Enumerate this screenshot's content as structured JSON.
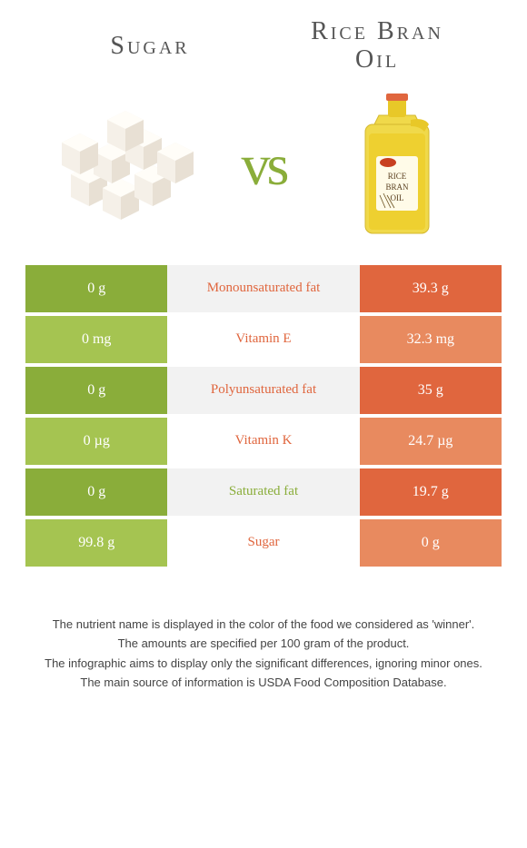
{
  "header": {
    "left_title": "Sugar",
    "right_title_line1": "Rice Bran",
    "right_title_line2": "Oil",
    "vs": "vs"
  },
  "colors": {
    "green_dark": "#8aad3a",
    "green_light": "#a5c451",
    "orange_dark": "#e0663e",
    "orange_light": "#e88a5f",
    "mid_alt": "#f2f2f2",
    "mid_base": "#ffffff",
    "text": "#333333"
  },
  "rows": [
    {
      "left": "0 g",
      "mid": "Monounsaturated fat",
      "right": "39.3 g",
      "winner": "right"
    },
    {
      "left": "0 mg",
      "mid": "Vitamin E",
      "right": "32.3 mg",
      "winner": "right"
    },
    {
      "left": "0 g",
      "mid": "Polyunsaturated fat",
      "right": "35 g",
      "winner": "right"
    },
    {
      "left": "0 µg",
      "mid": "Vitamin K",
      "right": "24.7 µg",
      "winner": "right"
    },
    {
      "left": "0 g",
      "mid": "Saturated fat",
      "right": "19.7 g",
      "winner": "left"
    },
    {
      "left": "99.8 g",
      "mid": "Sugar",
      "right": "0 g",
      "winner": "right"
    }
  ],
  "footer": {
    "line1": "The nutrient name is displayed in the color of the food we considered as 'winner'.",
    "line2": "The amounts are specified per 100 gram of the product.",
    "line3": "The infographic aims to display only the significant differences, ignoring minor ones.",
    "line4": "The main source of information is USDA Food Composition Database."
  },
  "icons": {
    "sugar": "sugar-cubes",
    "oil": "rice-bran-oil-bottle"
  }
}
